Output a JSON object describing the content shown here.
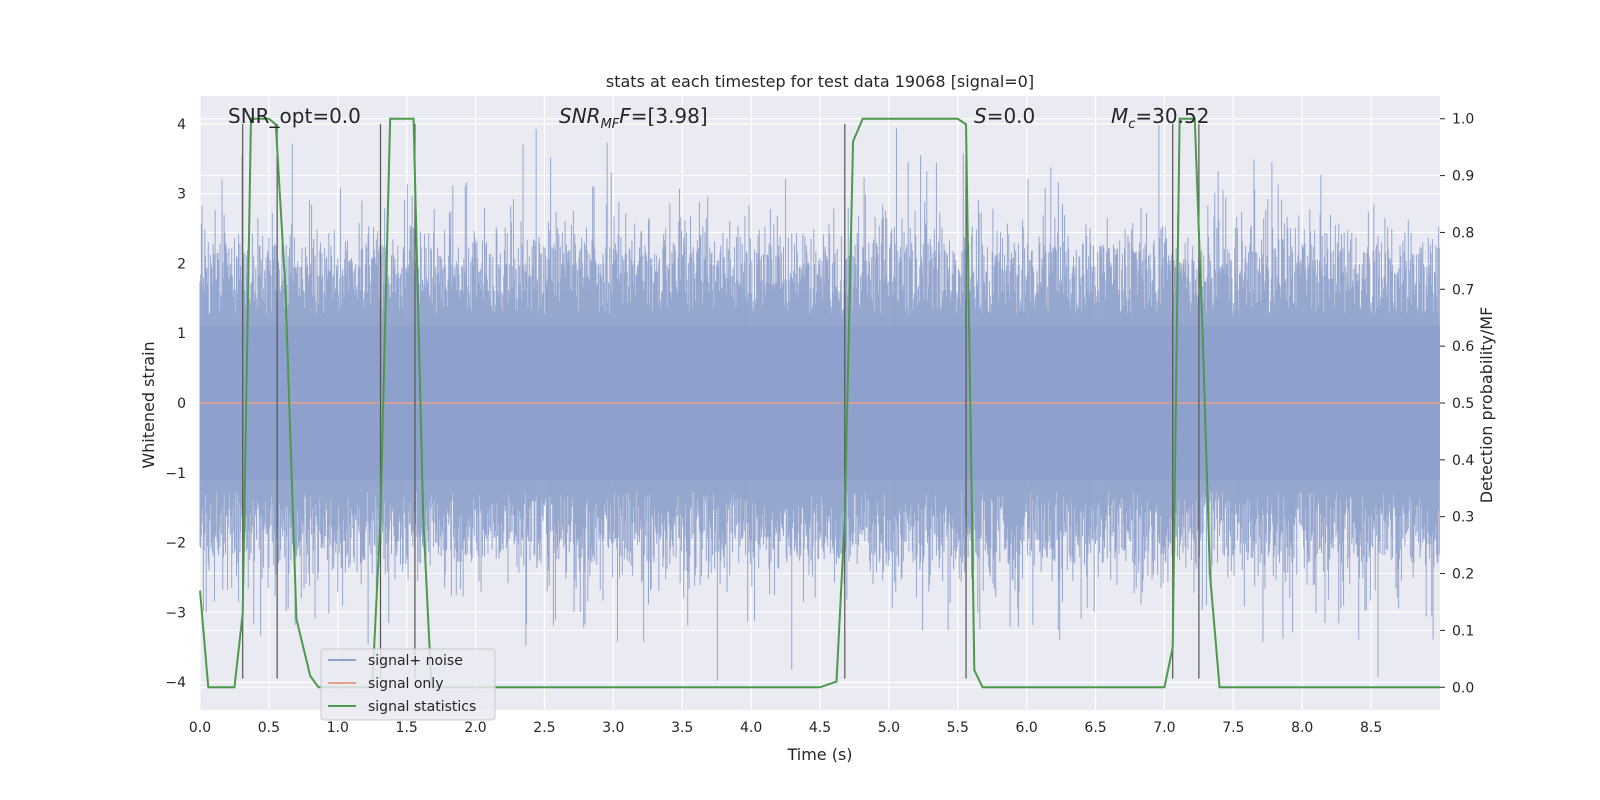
{
  "chart_data": {
    "type": "line",
    "title": "stats at each timestep for test data 19068 [signal=0]",
    "xlabel": "Time (s)",
    "ylabel": "Whitened strain",
    "y2label": "Detection probability/MF",
    "xlim": [
      0,
      9.0
    ],
    "ylim": [
      -4.4,
      4.4
    ],
    "y2lim": [
      -0.04,
      1.04
    ],
    "x_ticks": [
      "0.0",
      "0.5",
      "1.0",
      "1.5",
      "2.0",
      "2.5",
      "3.0",
      "3.5",
      "4.0",
      "4.5",
      "5.0",
      "5.5",
      "6.0",
      "6.5",
      "7.0",
      "7.5",
      "8.0",
      "8.5"
    ],
    "y_ticks": [
      "4",
      "3",
      "2",
      "1",
      "0",
      "−1",
      "−2",
      "−3",
      "−4"
    ],
    "y2_ticks": [
      "1.0",
      "0.9",
      "0.8",
      "0.7",
      "0.6",
      "0.5",
      "0.4",
      "0.3",
      "0.2",
      "0.1",
      "0.0"
    ],
    "grid": true,
    "legend_placement": "lower-left",
    "annotations": {
      "snr_opt": "SNR_opt=0.0",
      "snr_mf_main": "SNR",
      "snr_mf_sub": "MF",
      "snr_mf_value": "=[3.98]",
      "s_label": "S",
      "s_value": "=0.0",
      "mc_label": "M",
      "mc_sub": "c",
      "mc_value": "=30.52"
    },
    "series": [
      {
        "name": "signal+ noise",
        "color": "#8da0cb",
        "note": "whitened noise, approx. Gaussian, amplitude within [-4, 4]",
        "envelope_upper": 2.3,
        "envelope_lower": -2.3
      },
      {
        "name": "signal only",
        "color": "#e8a084",
        "x": [
          0,
          9.0
        ],
        "y": [
          0,
          0
        ]
      },
      {
        "name": "signal statistics",
        "color": "#4c9a4c",
        "x": [
          0.0,
          0.06,
          0.1,
          0.25,
          0.31,
          0.37,
          0.5,
          0.55,
          0.62,
          0.7,
          0.8,
          0.86,
          1.25,
          1.31,
          1.38,
          1.55,
          1.62,
          1.68,
          2.1,
          4.5,
          4.62,
          4.68,
          4.74,
          4.81,
          5.5,
          5.56,
          5.62,
          5.68,
          7.0,
          7.06,
          7.11,
          7.22,
          7.28,
          7.33,
          7.4,
          9.0
        ],
        "y": [
          0.17,
          0.0,
          0.0,
          0.0,
          0.13,
          1.0,
          1.0,
          0.99,
          0.7,
          0.12,
          0.02,
          0.0,
          0.0,
          0.3,
          1.0,
          1.0,
          0.3,
          0.0,
          0.0,
          0.0,
          0.01,
          0.3,
          0.96,
          1.0,
          1.0,
          0.99,
          0.03,
          0.0,
          0.0,
          0.07,
          1.0,
          1.0,
          0.6,
          0.2,
          0.0,
          0.0
        ]
      }
    ],
    "vertical_lines_x": [
      0.31,
      0.56,
      1.31,
      1.56,
      4.68,
      5.56,
      7.06,
      7.25
    ],
    "colors": {
      "plot_bg": "#eaeaf2",
      "grid": "#ffffff",
      "vline": "#555555"
    }
  }
}
